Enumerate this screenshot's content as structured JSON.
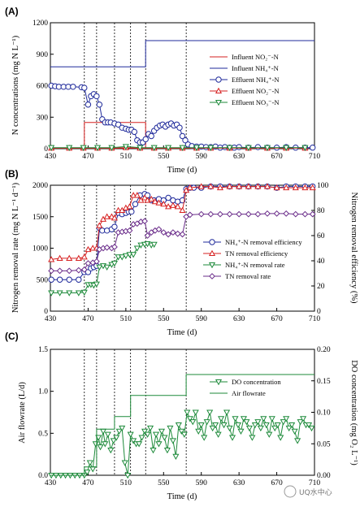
{
  "watermark": "UQ水中心",
  "chart_data": [
    {
      "panel": "(A)",
      "type": "line",
      "xlabel": "Time (d)",
      "ylabel": "N concentrations (mg N L⁻¹)",
      "xlim": [
        430,
        710
      ],
      "ylim": [
        0,
        1200
      ],
      "xticks": [
        430,
        470,
        510,
        550,
        590,
        630,
        670,
        710
      ],
      "yticks": [
        0,
        300,
        600,
        900,
        1200
      ],
      "legend_position": "right",
      "phase_lines": [
        466,
        479,
        498,
        515,
        531,
        574
      ],
      "series": [
        {
          "name": "Influent NO₂⁻-N",
          "color": "#d62020",
          "marker": "none",
          "x": [
            430,
            531,
            531,
            710
          ],
          "y": [
            5,
            5,
            5,
            5
          ],
          "x2": [
            466,
            531
          ],
          "y2": [
            250,
            250
          ]
        },
        {
          "name": "Influent NH₄⁺-N",
          "color": "#1f2a9b",
          "marker": "none",
          "x": [
            430,
            531,
            531,
            710
          ],
          "y": [
            780,
            780,
            1030,
            1030
          ]
        },
        {
          "name": "Effluent NH₄⁺-N",
          "color": "#1f2a9b",
          "marker": "circle",
          "x": [
            431,
            435,
            439,
            444,
            449,
            454,
            463,
            466,
            470,
            473,
            476,
            479,
            482,
            485,
            488,
            491,
            494,
            498,
            502,
            506,
            510,
            513,
            516,
            519,
            522,
            525,
            528,
            531,
            534,
            537,
            540,
            543,
            546,
            549,
            552,
            555,
            558,
            561,
            564,
            567,
            570,
            573,
            576,
            580,
            585,
            590,
            595,
            600,
            605,
            610,
            615,
            620,
            625,
            630,
            640,
            650,
            660,
            670,
            680,
            690,
            700,
            708
          ],
          "y": [
            600,
            595,
            590,
            590,
            590,
            590,
            585,
            580,
            420,
            500,
            520,
            500,
            420,
            280,
            250,
            250,
            250,
            240,
            230,
            200,
            190,
            180,
            180,
            160,
            80,
            60,
            60,
            90,
            140,
            120,
            170,
            200,
            220,
            230,
            210,
            230,
            240,
            220,
            230,
            200,
            120,
            80,
            40,
            25,
            20,
            20,
            15,
            15,
            20,
            10,
            15,
            10,
            10,
            15,
            10,
            15,
            10,
            10,
            15,
            10,
            10,
            10
          ]
        },
        {
          "name": "Effluent NO₂⁻-N",
          "color": "#d62020",
          "marker": "triangle-up",
          "x": [
            431,
            450,
            465,
            480,
            495,
            510,
            525,
            540,
            555,
            570,
            585,
            600,
            620,
            640,
            660,
            680,
            700
          ],
          "y": [
            5,
            5,
            5,
            5,
            5,
            10,
            5,
            5,
            5,
            5,
            5,
            5,
            5,
            5,
            5,
            5,
            5
          ]
        },
        {
          "name": "Effluent NO₃⁻-N",
          "color": "#1d8a3a",
          "marker": "triangle-down",
          "x": [
            431,
            450,
            465,
            480,
            495,
            510,
            525,
            540,
            555,
            570,
            585,
            600,
            620,
            640,
            660,
            680,
            700
          ],
          "y": [
            10,
            10,
            10,
            10,
            10,
            20,
            10,
            10,
            10,
            10,
            10,
            10,
            10,
            10,
            10,
            10,
            10
          ]
        }
      ]
    },
    {
      "panel": "(B)",
      "type": "line",
      "xlabel": "Time (d)",
      "ylabel": "Nitrogen removal rate (mg N L⁻¹ d⁻¹)",
      "ylabel_right": "Nitrogen removal efficiency (%)",
      "xlim": [
        430,
        710
      ],
      "ylim": [
        0,
        2000
      ],
      "ylim_right": [
        0,
        100
      ],
      "xticks": [
        430,
        470,
        510,
        550,
        590,
        630,
        670,
        710
      ],
      "yticks": [
        0,
        500,
        1000,
        1500,
        2000
      ],
      "yticks_right": [
        0,
        20,
        40,
        60,
        80,
        100
      ],
      "legend_position": "center-right",
      "phase_lines": [
        466,
        479,
        498,
        515,
        531,
        574
      ],
      "series": [
        {
          "name": "NH₄⁺-N removal efficiency",
          "color": "#1f2a9b",
          "marker": "circle",
          "axis": "right",
          "x": [
            431,
            440,
            450,
            460,
            466,
            470,
            473,
            476,
            479,
            482,
            485,
            490,
            495,
            498,
            502,
            506,
            510,
            513,
            516,
            520,
            525,
            530,
            533,
            537,
            540,
            545,
            550,
            555,
            560,
            565,
            570,
            574,
            578,
            582,
            590,
            600,
            610,
            620,
            630,
            640,
            650,
            660,
            670,
            680,
            690,
            700,
            708
          ],
          "y": [
            25,
            25,
            25,
            25,
            31,
            31,
            34,
            35,
            36,
            66,
            64,
            64,
            65,
            67,
            78,
            77,
            78,
            79,
            79,
            85,
            92,
            93,
            92,
            88,
            88,
            89,
            88,
            90,
            88,
            87,
            88,
            97,
            98,
            98,
            98,
            99,
            99,
            99,
            99,
            99,
            99,
            99,
            98,
            99,
            99,
            99,
            99
          ]
        },
        {
          "name": "TN removal efficiency",
          "color": "#d62020",
          "marker": "triangle-up",
          "axis": "right",
          "x": [
            431,
            440,
            450,
            460,
            466,
            470,
            475,
            479,
            482,
            486,
            490,
            495,
            498,
            502,
            506,
            510,
            514,
            518,
            522,
            526,
            530,
            533,
            537,
            541,
            545,
            550,
            555,
            560,
            565,
            570,
            574,
            578,
            590,
            600,
            610,
            620,
            630,
            640,
            650,
            660,
            670,
            680,
            690,
            700,
            708
          ],
          "y": [
            41,
            42,
            42,
            42,
            43,
            49,
            50,
            50,
            68,
            73,
            75,
            75,
            74,
            80,
            80,
            82,
            83,
            92,
            92,
            88,
            90,
            88,
            89,
            87,
            86,
            85,
            83,
            84,
            83,
            80,
            96,
            98,
            99,
            99,
            98,
            99,
            99,
            99,
            99,
            99,
            98,
            98,
            98,
            98,
            98
          ]
        },
        {
          "name": "NH₄⁺-N removal rate",
          "color": "#1d8a3a",
          "marker": "triangle-down",
          "axis": "left",
          "x": [
            431,
            440,
            450,
            460,
            466,
            470,
            473,
            476,
            479,
            482,
            486,
            490,
            495,
            498,
            502,
            506,
            510,
            514,
            518,
            522,
            526,
            530,
            533,
            537,
            540
          ],
          "y": [
            290,
            290,
            290,
            290,
            300,
            420,
            420,
            410,
            430,
            700,
            720,
            700,
            740,
            760,
            860,
            860,
            880,
            900,
            900,
            1000,
            1050,
            1060,
            1070,
            1050,
            1060
          ]
        },
        {
          "name": "TN removal rate",
          "color": "#6a2c8a",
          "marker": "diamond",
          "axis": "left",
          "x": [
            431,
            440,
            450,
            460,
            466,
            470,
            475,
            479,
            482,
            486,
            490,
            495,
            498,
            502,
            506,
            510,
            514,
            518,
            522,
            526,
            530,
            533,
            537,
            541,
            545,
            550,
            555,
            560,
            565,
            570,
            574,
            578,
            590,
            600,
            610,
            620,
            630,
            640,
            650,
            660,
            670,
            680,
            690,
            700,
            708
          ],
          "y": [
            640,
            640,
            640,
            650,
            660,
            760,
            770,
            790,
            980,
            1000,
            1010,
            1000,
            1020,
            1250,
            1260,
            1270,
            1280,
            1380,
            1390,
            1420,
            1430,
            1200,
            1250,
            1280,
            1300,
            1250,
            1220,
            1250,
            1230,
            1220,
            1500,
            1530,
            1540,
            1540,
            1540,
            1540,
            1540,
            1540,
            1540,
            1550,
            1550,
            1550,
            1540,
            1540,
            1540
          ]
        }
      ]
    },
    {
      "panel": "(C)",
      "type": "line",
      "xlabel": "Time (d)",
      "ylabel": "Air flowrate (L/d)",
      "ylabel_right": "DO concentration (mg O₂ L⁻¹)",
      "xlim": [
        430,
        710
      ],
      "ylim": [
        0,
        1.5
      ],
      "ylim_right": [
        0,
        0.2
      ],
      "xticks": [
        430,
        470,
        510,
        550,
        590,
        630,
        670,
        710
      ],
      "yticks": [
        0.0,
        0.5,
        1.0,
        1.5
      ],
      "yticks_right": [
        0.0,
        0.05,
        0.1,
        0.15,
        0.2
      ],
      "legend_position": "upper-right",
      "phase_lines": [
        466,
        479,
        498,
        515,
        531,
        574
      ],
      "series": [
        {
          "name": "DO concentration",
          "color": "#1d8a3a",
          "marker": "triangle-down",
          "axis": "right",
          "x": [
            431,
            436,
            441,
            446,
            451,
            456,
            461,
            466,
            469,
            472,
            475,
            478,
            481,
            483,
            486,
            488,
            491,
            494,
            497,
            500,
            503,
            506,
            509,
            512,
            515,
            518,
            521,
            524,
            527,
            530,
            533,
            536,
            539,
            542,
            545,
            548,
            551,
            554,
            557,
            560,
            563,
            566,
            569,
            572,
            575,
            578,
            581,
            584,
            587,
            590,
            593,
            596,
            599,
            602,
            605,
            608,
            611,
            614,
            617,
            620,
            623,
            626,
            629,
            632,
            635,
            638,
            641,
            644,
            647,
            650,
            653,
            656,
            659,
            662,
            665,
            668,
            671,
            674,
            677,
            680,
            683,
            686,
            689,
            692,
            695,
            698,
            701,
            704,
            707
          ],
          "y": [
            0.0,
            0.0,
            0.0,
            0.0,
            0.0,
            0.0,
            0.0,
            0.0,
            0.005,
            0.02,
            0.01,
            0.05,
            0.06,
            0.045,
            0.07,
            0.05,
            0.065,
            0.04,
            0.055,
            0.06,
            0.07,
            0.075,
            0.02,
            0.0,
            0.065,
            0.055,
            0.05,
            0.05,
            0.06,
            0.07,
            0.065,
            0.075,
            0.04,
            0.065,
            0.05,
            0.07,
            0.06,
            0.04,
            0.075,
            0.055,
            0.03,
            0.08,
            0.07,
            0.065,
            0.1,
            0.09,
            0.085,
            0.1,
            0.07,
            0.08,
            0.06,
            0.085,
            0.1,
            0.075,
            0.08,
            0.065,
            0.09,
            0.08,
            0.1,
            0.075,
            0.06,
            0.09,
            0.08,
            0.07,
            0.09,
            0.085,
            0.075,
            0.06,
            0.08,
            0.085,
            0.075,
            0.09,
            0.08,
            0.065,
            0.09,
            0.075,
            0.08,
            0.06,
            0.085,
            0.09,
            0.075,
            0.08,
            0.07,
            0.055,
            0.085,
            0.09,
            0.08,
            0.08,
            0.075
          ]
        },
        {
          "name": "Air flowrate",
          "color": "#1d8a3a",
          "marker": "none",
          "axis": "left",
          "x": [
            430,
            466,
            466,
            479,
            479,
            498,
            498,
            515,
            515,
            574,
            574,
            710
          ],
          "y": [
            0,
            0,
            0.1,
            0.1,
            0.55,
            0.55,
            0.7,
            0.7,
            0.95,
            0.95,
            1.2,
            1.2
          ]
        }
      ]
    }
  ],
  "legend_A": [
    "Influent NO₂⁻-N",
    "Influent NH₄⁺-N",
    "Effluent NH₄⁺-N",
    "Effluent NO₂⁻-N",
    "Effluent NO₃⁻-N"
  ],
  "legend_B": [
    "NH₄⁺-N removal efficiency",
    "TN removal efficiency",
    "NH₄⁺-N removal rate",
    "TN removal rate"
  ],
  "legend_C": [
    "DO concentration",
    "Air flowrate"
  ]
}
